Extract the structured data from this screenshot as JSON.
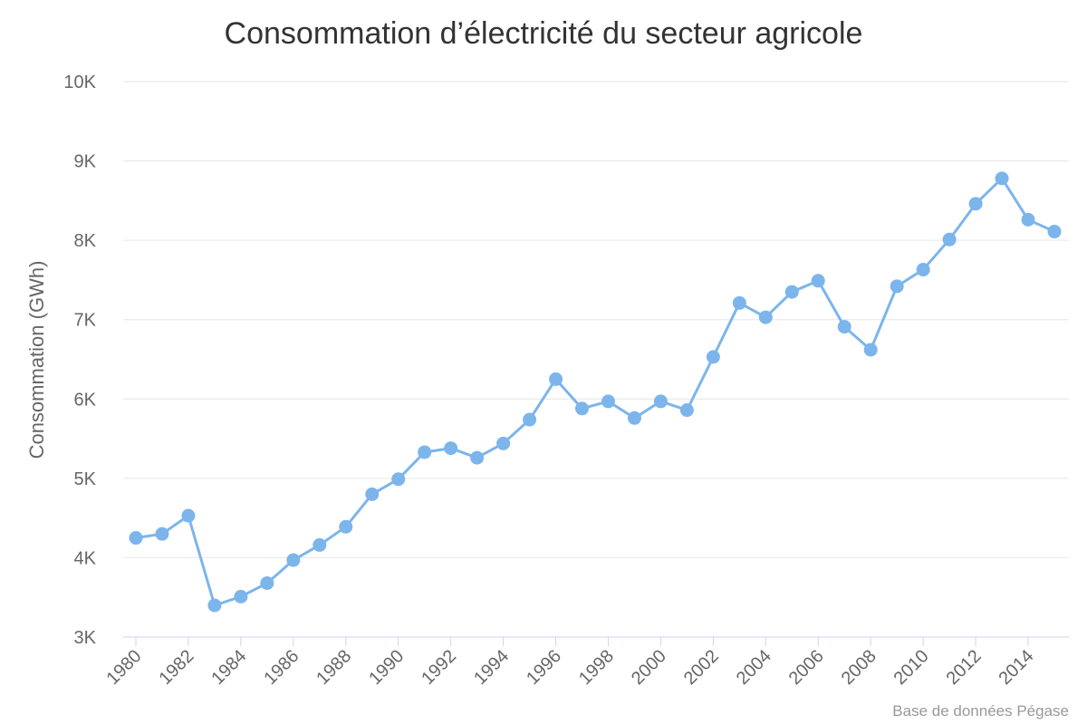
{
  "chart_data": {
    "type": "line",
    "title": "Consommation d’électricité du secteur agricole",
    "ylabel": "Consommation (GWh)",
    "xlabel": "",
    "credits": "Base de données Pégase",
    "ylim": [
      3000,
      10000
    ],
    "y_ticks": [
      3000,
      4000,
      5000,
      6000,
      7000,
      8000,
      9000,
      10000
    ],
    "y_tick_labels": [
      "3K",
      "4K",
      "5K",
      "6K",
      "7K",
      "8K",
      "9K",
      "10K"
    ],
    "x_tick_labels": [
      "1980",
      "1982",
      "1984",
      "1986",
      "1988",
      "1990",
      "1992",
      "1994",
      "1996",
      "1998",
      "2000",
      "2002",
      "2004",
      "2006",
      "2008",
      "2010",
      "2012",
      "2014"
    ],
    "grid": true,
    "legend": "none",
    "series_color": "#7cb5ec",
    "grid_color": "#e6e6e6",
    "axis_color": "#ccd6eb",
    "x": [
      1980,
      1981,
      1982,
      1983,
      1984,
      1985,
      1986,
      1987,
      1988,
      1989,
      1990,
      1991,
      1992,
      1993,
      1994,
      1995,
      1996,
      1997,
      1998,
      1999,
      2000,
      2001,
      2002,
      2003,
      2004,
      2005,
      2006,
      2007,
      2008,
      2009,
      2010,
      2011,
      2012,
      2013,
      2014,
      2015
    ],
    "series": [
      {
        "values": [
          4250,
          4300,
          4530,
          3400,
          3510,
          3680,
          3970,
          4160,
          4390,
          4800,
          4990,
          5330,
          5380,
          5260,
          5440,
          5740,
          6250,
          5880,
          5970,
          5760,
          5970,
          5860,
          6530,
          7210,
          7030,
          7350,
          7490,
          6910,
          6620,
          7420,
          7630,
          8010,
          8460,
          8780,
          8260,
          8110
        ]
      }
    ]
  }
}
